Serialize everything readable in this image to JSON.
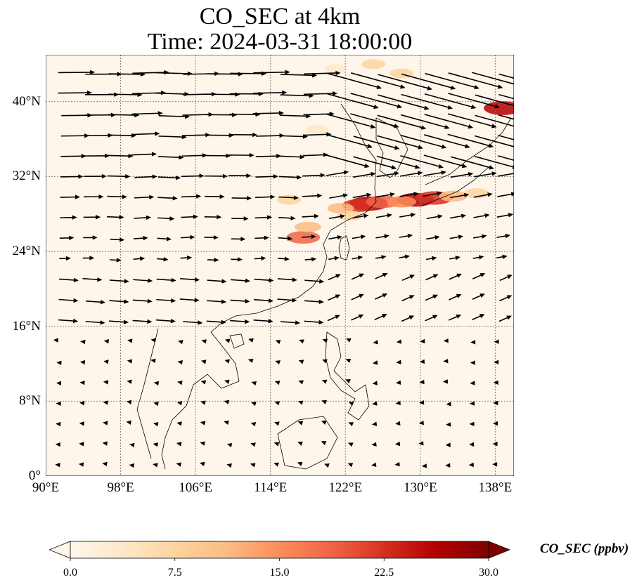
{
  "title_line1": "CO_SEC at 4km",
  "title_line2": "Time: 2024-03-31 18:00:00",
  "map": {
    "extent_lon": [
      90,
      140
    ],
    "extent_lat": [
      0,
      45
    ],
    "gridlines": true,
    "lon_ticks": [
      {
        "value": 90,
        "label": "90°E"
      },
      {
        "value": 98,
        "label": "98°E"
      },
      {
        "value": 106,
        "label": "106°E"
      },
      {
        "value": 114,
        "label": "114°E"
      },
      {
        "value": 122,
        "label": "122°E"
      },
      {
        "value": 130,
        "label": "130°E"
      },
      {
        "value": 138,
        "label": "138°E"
      }
    ],
    "lat_ticks": [
      {
        "value": 0,
        "label": "0°"
      },
      {
        "value": 8,
        "label": "8°N"
      },
      {
        "value": 16,
        "label": "16°N"
      },
      {
        "value": 24,
        "label": "24°N"
      },
      {
        "value": 32,
        "label": "32°N"
      },
      {
        "value": 40,
        "label": "40°N"
      }
    ]
  },
  "plumes": [
    {
      "lon": 124.5,
      "lat": 29.1,
      "value": 28
    },
    {
      "lon": 123.5,
      "lat": 28.9,
      "value": 22
    },
    {
      "lon": 126.0,
      "lat": 29.3,
      "value": 20
    },
    {
      "lon": 121.5,
      "lat": 28.6,
      "value": 10
    },
    {
      "lon": 122.5,
      "lat": 27.8,
      "value": 8
    },
    {
      "lon": 129.5,
      "lat": 29.5,
      "value": 25
    },
    {
      "lon": 131.5,
      "lat": 29.7,
      "value": 24
    },
    {
      "lon": 128.0,
      "lat": 29.3,
      "value": 14
    },
    {
      "lon": 133.5,
      "lat": 29.9,
      "value": 12
    },
    {
      "lon": 136.0,
      "lat": 30.2,
      "value": 8
    },
    {
      "lon": 138.8,
      "lat": 39.3,
      "value": 26
    },
    {
      "lon": 117.5,
      "lat": 25.5,
      "value": 20
    },
    {
      "lon": 118.0,
      "lat": 26.6,
      "value": 10
    },
    {
      "lon": 116.0,
      "lat": 29.5,
      "value": 6
    },
    {
      "lon": 125.0,
      "lat": 44.0,
      "value": 6
    },
    {
      "lon": 128.0,
      "lat": 43.0,
      "value": 6
    },
    {
      "lon": 121.0,
      "lat": 43.5,
      "value": 4
    },
    {
      "lon": 119.0,
      "lat": 37.0,
      "value": 4
    }
  ],
  "colorbar": {
    "label": "CO_SEC (ppbv)",
    "min": 0,
    "max": 30,
    "extend": "both",
    "colormap": "OrRd",
    "colors": [
      "#fff7ec",
      "#fee8c8",
      "#fdd49e",
      "#fdbb84",
      "#fc8d59",
      "#ef6548",
      "#d7301f",
      "#b30000",
      "#7f0000"
    ],
    "ticks": [
      {
        "value": 0,
        "label": "0.0"
      },
      {
        "value": 7.5,
        "label": "7.5"
      },
      {
        "value": 15,
        "label": "15.0"
      },
      {
        "value": 22.5,
        "label": "22.5"
      },
      {
        "value": 30,
        "label": "30.0"
      }
    ]
  }
}
